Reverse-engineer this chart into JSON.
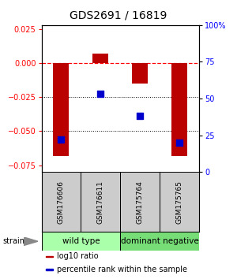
{
  "title": "GDS2691 / 16819",
  "samples": [
    "GSM176606",
    "GSM176611",
    "GSM175764",
    "GSM175765"
  ],
  "log10_ratio": [
    -0.068,
    0.007,
    -0.015,
    -0.068
  ],
  "percentile_rank": [
    0.22,
    0.53,
    0.38,
    0.2
  ],
  "ylim_left": [
    -0.08,
    0.028
  ],
  "ylim_right": [
    0.0,
    1.0
  ],
  "yticks_left": [
    0.025,
    0.0,
    -0.025,
    -0.05,
    -0.075
  ],
  "yticks_right": [
    1.0,
    0.75,
    0.5,
    0.25,
    0.0
  ],
  "yticks_right_labels": [
    "100%",
    "75",
    "50",
    "25",
    "0"
  ],
  "hlines_dotted": [
    -0.025,
    -0.05
  ],
  "hline_dashed": 0.0,
  "bar_color": "#bb0000",
  "dot_color": "#0000cc",
  "bar_width": 0.4,
  "dot_size": 40,
  "groups": [
    {
      "label": "wild type",
      "indices": [
        0,
        1
      ],
      "color": "#aaffaa"
    },
    {
      "label": "dominant negative",
      "indices": [
        2,
        3
      ],
      "color": "#77dd77"
    }
  ],
  "strain_label": "strain",
  "legend_items": [
    {
      "color": "#bb0000",
      "label": "log10 ratio"
    },
    {
      "color": "#0000cc",
      "label": "percentile rank within the sample"
    }
  ],
  "sample_box_color": "#cccccc",
  "title_fontsize": 10,
  "tick_fontsize": 7,
  "legend_fontsize": 7,
  "group_fontsize": 7.5,
  "sample_fontsize": 6.5
}
